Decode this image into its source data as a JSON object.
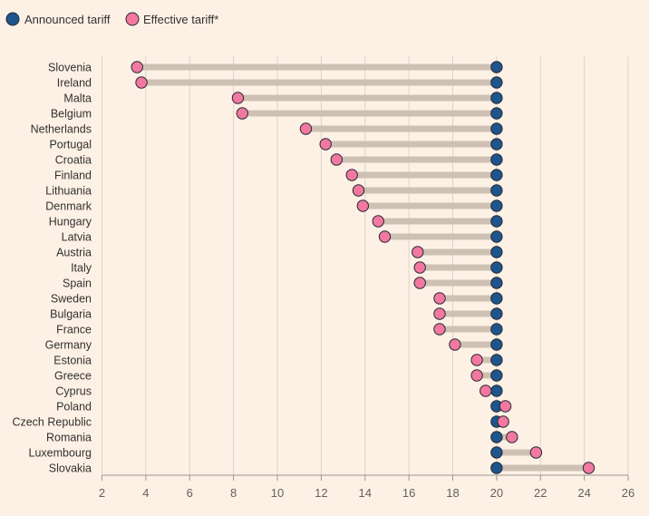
{
  "chart_data": {
    "type": "dumbbell",
    "title": "",
    "xlabel": "",
    "ylabel": "",
    "xlim": [
      2,
      26
    ],
    "xticks": [
      2,
      4,
      6,
      8,
      10,
      12,
      14,
      16,
      18,
      20,
      22,
      24,
      26
    ],
    "grid": true,
    "legend_position": "top-left",
    "colors": {
      "background": "#fdf1e6",
      "announced": "#1e558c",
      "effective": "#f2789f",
      "connector": "#cec1b4",
      "grid": "#dcd2c8",
      "axis": "#9d968f"
    },
    "series": [
      {
        "name": "Announced tariff",
        "key": "announced"
      },
      {
        "name": "Effective tariff*",
        "key": "effective"
      }
    ],
    "categories": [
      "Slovenia",
      "Ireland",
      "Malta",
      "Belgium",
      "Netherlands",
      "Portugal",
      "Croatia",
      "Finland",
      "Lithuania",
      "Denmark",
      "Hungary",
      "Latvia",
      "Austria",
      "Italy",
      "Spain",
      "Sweden",
      "Bulgaria",
      "France",
      "Germany",
      "Estonia",
      "Greece",
      "Cyprus",
      "Poland",
      "Czech Republic",
      "Romania",
      "Luxembourg",
      "Slovakia"
    ],
    "announced": [
      20,
      20,
      20,
      20,
      20,
      20,
      20,
      20,
      20,
      20,
      20,
      20,
      20,
      20,
      20,
      20,
      20,
      20,
      20,
      20,
      20,
      20,
      20,
      20,
      20,
      20,
      20
    ],
    "effective": [
      3.6,
      3.8,
      8.2,
      8.4,
      11.3,
      12.2,
      12.7,
      13.4,
      13.7,
      13.9,
      14.6,
      14.9,
      16.4,
      16.5,
      16.5,
      17.4,
      17.4,
      17.4,
      18.1,
      19.1,
      19.1,
      19.5,
      20.4,
      20.3,
      20.7,
      21.8,
      24.2
    ]
  }
}
